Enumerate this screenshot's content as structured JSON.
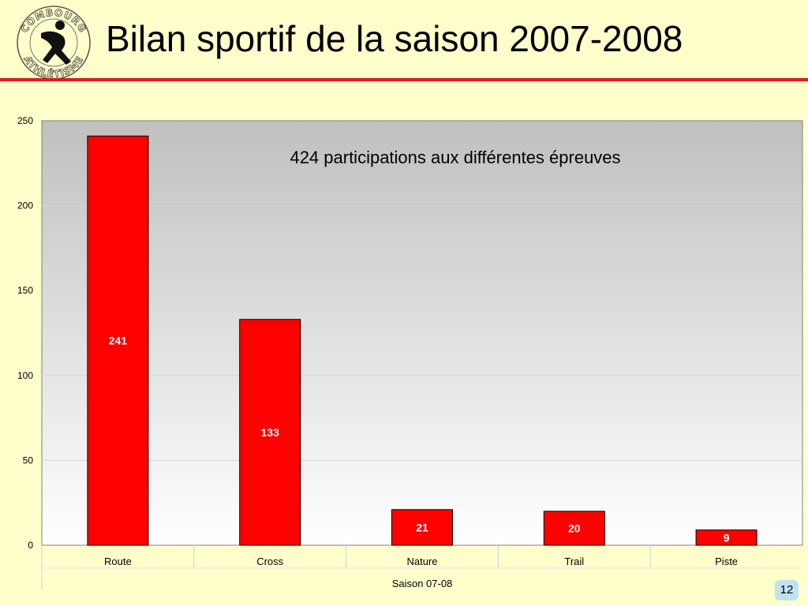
{
  "slide": {
    "title": "Bilan sportif de la saison 2007-2008",
    "page_number": "12",
    "logo_text_top": "COMBOURG",
    "logo_text_bottom": "ATHLÉTISME"
  },
  "colors": {
    "background": "#ffffcc",
    "accent": "#e01a1a",
    "bar_fill": "#ff0000",
    "bar_stroke": "#000000",
    "badge": "#bfe3f2"
  },
  "chart_data": {
    "type": "bar",
    "title": "",
    "categories": [
      "Route",
      "Cross",
      "Nature",
      "Trail",
      "Piste"
    ],
    "values": [
      241,
      133,
      21,
      20,
      9
    ],
    "data_labels": [
      "241",
      "133",
      "21",
      "20",
      "9"
    ],
    "annotation": "424 participations aux différentes épreuves",
    "xlabel": "Saison 07-08",
    "ylabel": "",
    "ylim": [
      0,
      250
    ],
    "yticks": [
      0,
      50,
      100,
      150,
      200,
      250
    ],
    "grid": true,
    "legend": "none"
  }
}
